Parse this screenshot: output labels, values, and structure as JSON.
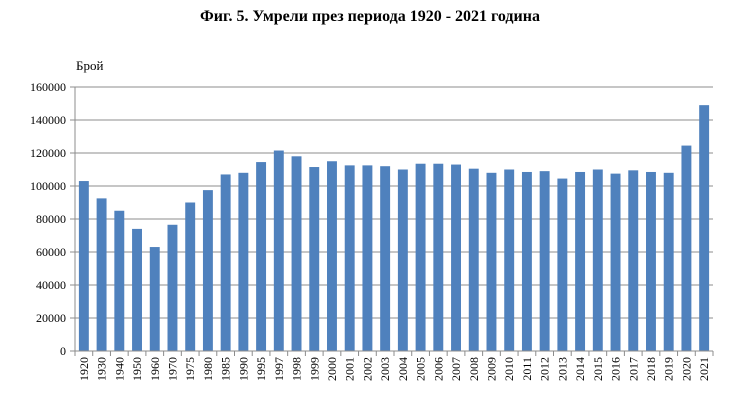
{
  "chart_data": {
    "type": "bar",
    "title": "Фиг. 5. Умрели през периода 1920 - 2021 година",
    "ylabel": "Брой",
    "xlabel": "",
    "ylim": [
      0,
      160000
    ],
    "yticks": [
      0,
      20000,
      40000,
      60000,
      80000,
      100000,
      120000,
      140000,
      160000
    ],
    "grid": true,
    "bar_color": "#4F81BD",
    "categories": [
      "1920",
      "1930",
      "1940",
      "1950",
      "1960",
      "1970",
      "1975",
      "1980",
      "1985",
      "1990",
      "1995",
      "1997",
      "1998",
      "1999",
      "2000",
      "2001",
      "2002",
      "2003",
      "2004",
      "2005",
      "2006",
      "2007",
      "2008",
      "2009",
      "2010",
      "2011",
      "2012",
      "2013",
      "2014",
      "2015",
      "2016",
      "2017",
      "2018",
      "2019",
      "2020",
      "2021"
    ],
    "values": [
      103000,
      92500,
      85000,
      74000,
      63000,
      76500,
      90000,
      97500,
      107000,
      108000,
      114500,
      121500,
      118000,
      111500,
      115000,
      112500,
      112500,
      112000,
      110000,
      113500,
      113500,
      113000,
      110500,
      108000,
      110000,
      108500,
      109000,
      104500,
      108500,
      110000,
      107500,
      109500,
      108500,
      108000,
      124500,
      149000
    ]
  }
}
